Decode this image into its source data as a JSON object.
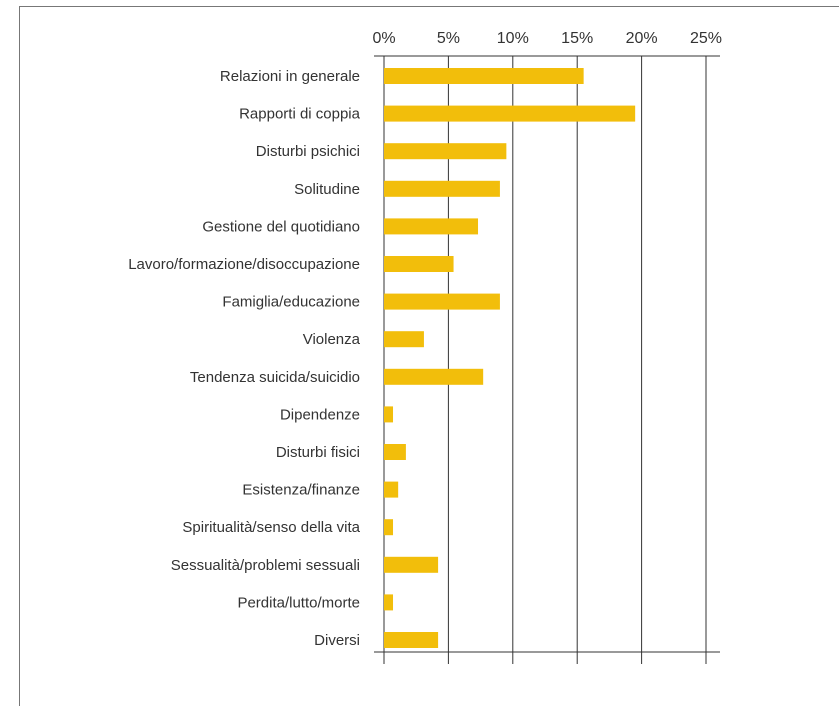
{
  "chart_data": {
    "type": "bar",
    "orientation": "horizontal",
    "title": "",
    "xlabel": "",
    "ylabel": "",
    "xlim": [
      0,
      25
    ],
    "x_ticks": [
      0,
      5,
      10,
      15,
      20,
      25
    ],
    "x_tick_labels": [
      "0%",
      "5%",
      "10%",
      "15%",
      "20%",
      "25%"
    ],
    "axis_position": "top",
    "grid": "vertical",
    "bar_color": "#F2BE0B",
    "categories": [
      "Relazioni in generale",
      "Rapporti di coppia",
      "Disturbi psichici",
      "Solitudine",
      "Gestione del quotidiano",
      "Lavoro/formazione/disoccupazione",
      "Famiglia/educazione",
      "Violenza",
      "Tendenza suicida/suicidio",
      "Dipendenze",
      "Disturbi fisici",
      "Esistenza/finanze",
      "Spiritualità/senso della vita",
      "Sessualità/problemi sessuali",
      "Perdita/lutto/morte",
      "Diversi"
    ],
    "values": [
      15.5,
      19.5,
      9.5,
      9.0,
      7.3,
      5.4,
      9.0,
      3.1,
      7.7,
      0.7,
      1.7,
      1.1,
      0.7,
      4.2,
      0.7,
      4.2
    ]
  }
}
